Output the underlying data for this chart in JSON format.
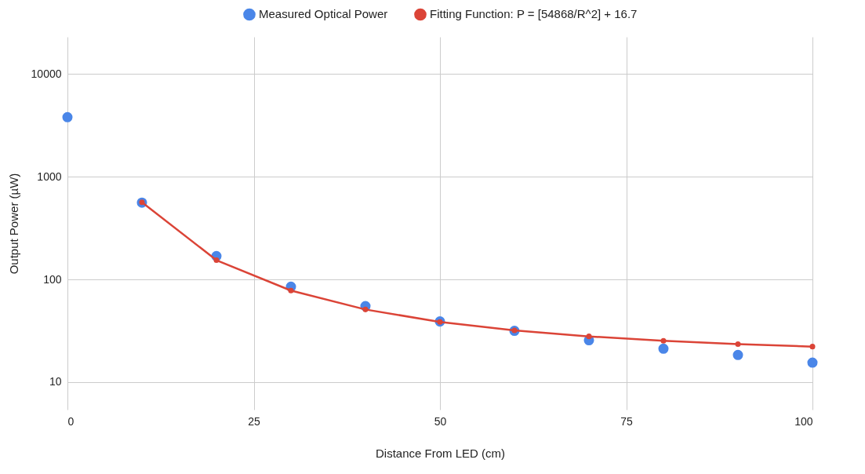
{
  "chart_data": {
    "type": "scatter",
    "xlabel": "Distance From LED (cm)",
    "ylabel": "Output Power (µW)",
    "log": "y",
    "grid": true,
    "legend": "top",
    "marker": "circle",
    "line_style": "solid",
    "xlim": [
      0,
      100
    ],
    "xticks": [
      0,
      25,
      50,
      75,
      100
    ],
    "ylim": [
      5.4,
      23000
    ],
    "yticks": [
      10,
      100,
      1000,
      10000
    ],
    "series": [
      {
        "name": "Measured Optical Power",
        "color": "#4a86e8",
        "x": [
          0,
          10,
          20,
          30,
          40,
          50,
          60,
          70,
          80,
          90,
          100
        ],
        "values": [
          3800,
          560,
          169,
          85,
          55,
          39,
          31.6,
          25.6,
          21.2,
          18.4,
          15.5
        ]
      },
      {
        "name": "Fitting Function: P = [54868/R^2] + 16.7",
        "type": "line",
        "color": "#db4437",
        "x": [
          10,
          20,
          30,
          40,
          50,
          60,
          70,
          80,
          90,
          100
        ],
        "values": [
          565,
          154,
          78,
          51,
          38.6,
          31.9,
          27.9,
          25.3,
          23.5,
          22.2
        ]
      }
    ]
  }
}
